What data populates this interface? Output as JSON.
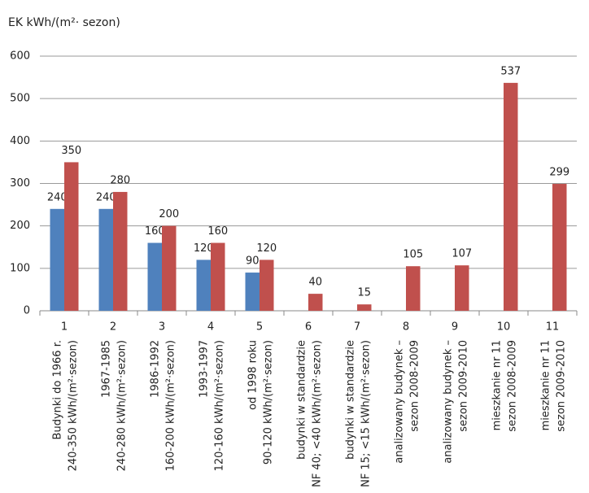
{
  "chart_data": {
    "type": "bar",
    "y_label": "EK kWh/(m²· sezon)",
    "categories": [
      "1",
      "2",
      "3",
      "4",
      "5",
      "6",
      "7",
      "8",
      "9",
      "10",
      "11"
    ],
    "category_descriptions": [
      [
        "Budynki do 1966 r.",
        "240-350 kWh/(m²·sezon)"
      ],
      [
        "1967-1985",
        "240-280 kWh/(m²·sezon)"
      ],
      [
        "1986-1992",
        "160-200 kWh/(m²·sezon)"
      ],
      [
        "1993-1997",
        "120-160 kWh/(m²·sezon)"
      ],
      [
        "od 1998 roku",
        "90-120 kWh/(m²·sezon)"
      ],
      [
        "budynki w standardzie",
        "NF 40; <40 kWh/(m²·sezon)"
      ],
      [
        "budynki w standardzie",
        "NF 15; <15 kWh/(m²·sezon)"
      ],
      [
        "analizowany budynek –",
        "sezon 2008-2009"
      ],
      [
        "analizowany budynek –",
        "sezon 2009-2010"
      ],
      [
        "mieszkanie nr 11",
        "sezon 2008-2009"
      ],
      [
        "mieszkanie nr 11",
        "sezon 2009-2010"
      ]
    ],
    "series": [
      {
        "color": "#4f81bd",
        "values": [
          240,
          240,
          160,
          120,
          90,
          null,
          null,
          null,
          null,
          null,
          null
        ]
      },
      {
        "color": "#c0504d",
        "values": [
          350,
          280,
          200,
          160,
          120,
          40,
          15,
          105,
          107,
          537,
          299
        ]
      }
    ],
    "ylim": [
      0,
      600
    ],
    "yticks": [
      0,
      100,
      200,
      300,
      400,
      500,
      600
    ],
    "grid": true
  }
}
